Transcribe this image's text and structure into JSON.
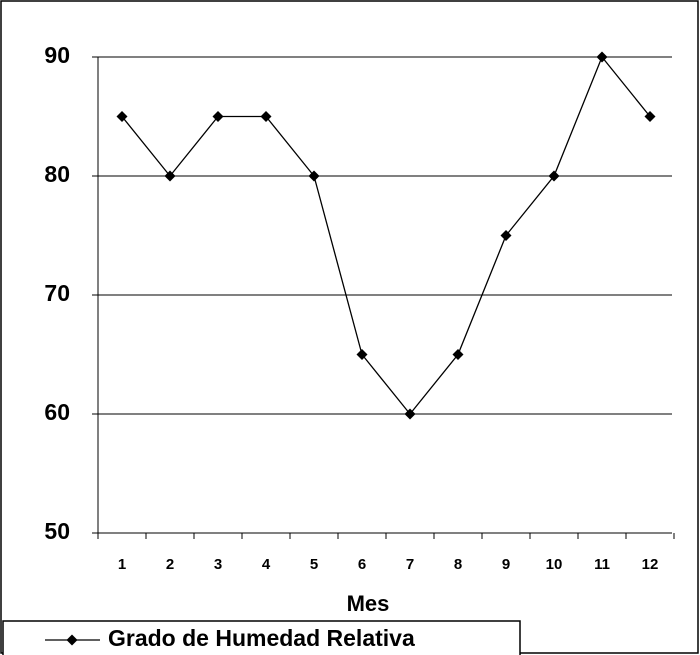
{
  "chart_data": {
    "type": "line",
    "x_label": "Mes",
    "categories": [
      "1",
      "2",
      "3",
      "4",
      "5",
      "6",
      "7",
      "8",
      "9",
      "10",
      "11",
      "12"
    ],
    "series": [
      {
        "name": "Grado de Humedad Relativa",
        "color": "#000000",
        "values": [
          85,
          80,
          85,
          85,
          80,
          65,
          60,
          65,
          75,
          80,
          90,
          85
        ]
      }
    ],
    "ylim": [
      50,
      90
    ],
    "yticks": [
      50,
      60,
      70,
      80,
      90
    ],
    "grid": true
  }
}
